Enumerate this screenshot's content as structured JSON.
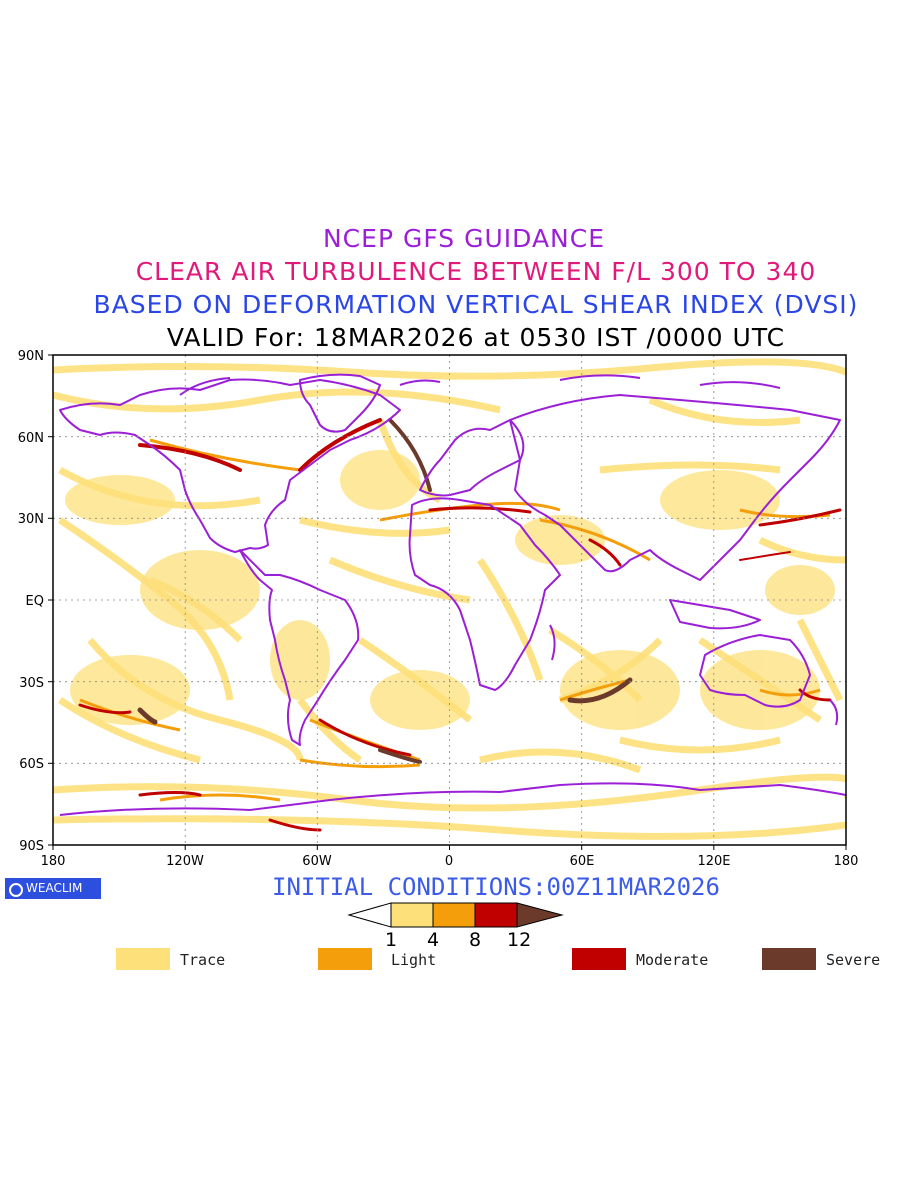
{
  "titles": {
    "line1": "NCEP GFS GUIDANCE",
    "line2": "CLEAR AIR TURBULENCE BETWEEN F/L 300 TO 340",
    "line3": "BASED ON DEFORMATION VERTICAL SHEAR INDEX (DVSI)",
    "line4": "VALID For: 18MAR2026 at 0530 IST /0000 UTC"
  },
  "colors": {
    "title1": "#9b1fd6",
    "title2": "#e0197a",
    "title3": "#2a46e6",
    "title4": "#000000",
    "coast": "#9b1fd6",
    "trace": "#fde07a",
    "light": "#f59e0b",
    "moderate": "#c00000",
    "severe": "#6b3a2a"
  },
  "map": {
    "lat_labels": [
      "90N",
      "60N",
      "30N",
      "EQ",
      "30S",
      "60S",
      "90S"
    ],
    "lon_labels": [
      "180",
      "120W",
      "60W",
      "0",
      "60E",
      "120E",
      "180"
    ]
  },
  "initial_conditions": "INITIAL CONDITIONS:00Z11MAR2026",
  "logo": {
    "text": "WEACLIM",
    "icon": "circle-logo-icon"
  },
  "colorbar": {
    "ticks": [
      "1",
      "4",
      "8",
      "12"
    ],
    "colors": [
      "#ffffff",
      "#fde07a",
      "#f59e0b",
      "#c00000",
      "#6b3a2a"
    ]
  },
  "legend": [
    {
      "label": "Trace",
      "color": "#fde07a"
    },
    {
      "label": "Light",
      "color": "#f59e0b"
    },
    {
      "label": "Moderate",
      "color": "#c00000"
    },
    {
      "label": "Severe",
      "color": "#6b3a2a"
    }
  ]
}
